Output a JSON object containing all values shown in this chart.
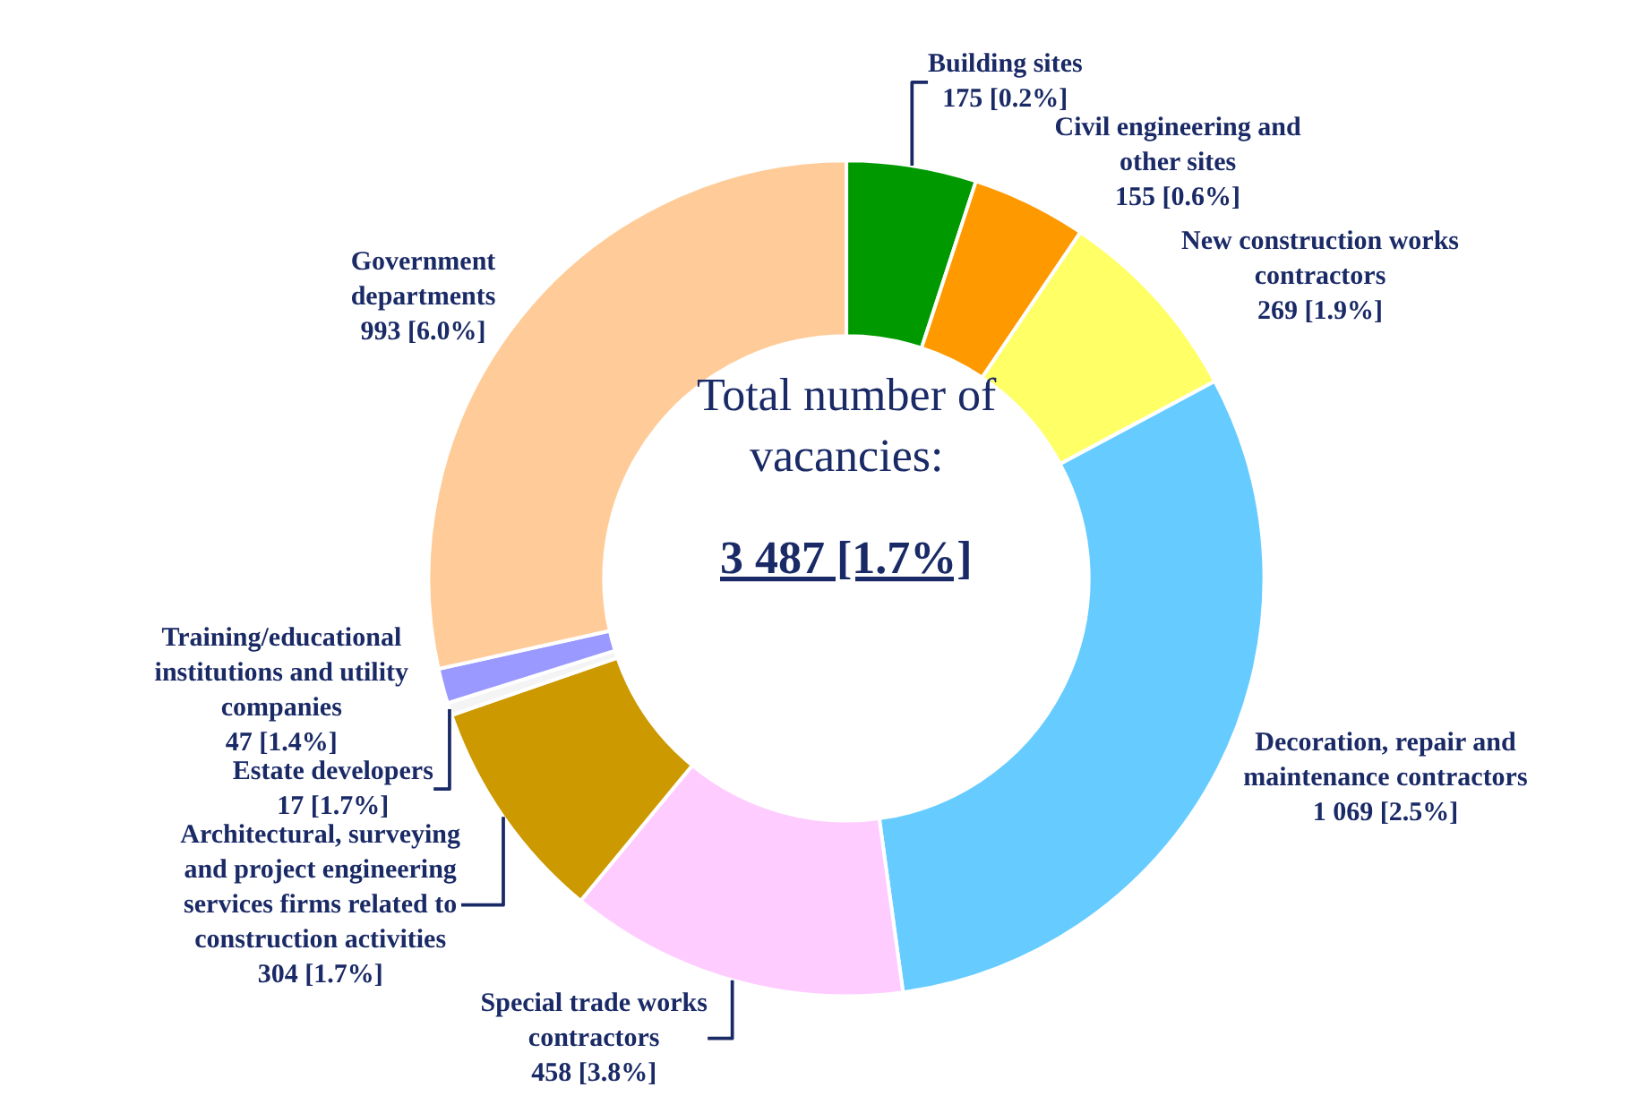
{
  "chart_data": {
    "type": "donut",
    "categories": [
      "Building sites",
      "Civil engineering and\nother sites",
      "New construction works\ncontractors",
      "Decoration, repair and\nmaintenance contractors",
      "Special trade works\ncontractors",
      "Architectural, surveying\nand project engineering\nservices firms related to\nconstruction activities",
      "Estate developers",
      "Training/educational\ninstitutions and utility\ncompanies",
      "Government\ndepartments"
    ],
    "values": [
      175,
      155,
      269,
      1069,
      458,
      304,
      17,
      47,
      993
    ],
    "value_labels": [
      "175 [0.2%]",
      "155 [0.6%]",
      "269 [1.9%]",
      "1 069 [2.5%]",
      "458 [3.8%]",
      "304 [1.7%]",
      "17 [1.7%]",
      "47 [1.4%]",
      "993 [6.0%]"
    ],
    "colors": [
      "#009900",
      "#ff9900",
      "#ffff66",
      "#66ccff",
      "#ffccff",
      "#cc9900",
      "#f4f4f4",
      "#9999ff",
      "#ffcc99"
    ],
    "annotations": [
      "Total number of\nvacancies:",
      "3 487 [1.7%]"
    ],
    "legend": false
  }
}
